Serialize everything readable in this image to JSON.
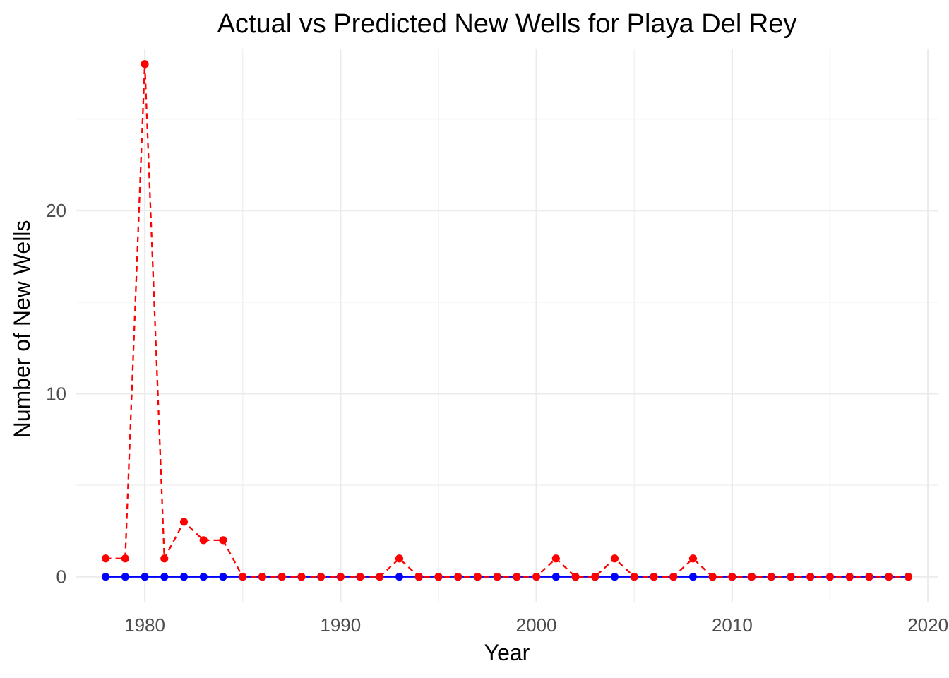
{
  "chart_data": {
    "type": "line",
    "title": "Actual vs Predicted New Wells for Playa Del Rey",
    "xlabel": "Year",
    "ylabel": "Number of New Wells",
    "xlim": [
      1976.5,
      2020.5
    ],
    "ylim": [
      -1.4,
      28.8
    ],
    "x_ticks": [
      1980,
      1990,
      2000,
      2010,
      2020
    ],
    "y_ticks": [
      0,
      10,
      20
    ],
    "grid": true,
    "legend": "none",
    "x": [
      1978,
      1979,
      1980,
      1981,
      1982,
      1983,
      1984,
      1985,
      1986,
      1987,
      1988,
      1989,
      1990,
      1991,
      1992,
      1993,
      1994,
      1995,
      1996,
      1997,
      1998,
      1999,
      2000,
      2001,
      2002,
      2003,
      2004,
      2005,
      2006,
      2007,
      2008,
      2009,
      2010,
      2011,
      2012,
      2013,
      2014,
      2015,
      2016,
      2017,
      2018,
      2019
    ],
    "series": [
      {
        "color": "#0000ff",
        "line_style": "solid",
        "values": [
          0,
          0,
          0,
          0,
          0,
          0,
          0,
          0,
          0,
          0,
          0,
          0,
          0,
          0,
          0,
          0,
          0,
          0,
          0,
          0,
          0,
          0,
          0,
          0,
          0,
          0,
          0,
          0,
          0,
          0,
          0,
          0,
          0,
          0,
          0,
          0,
          0,
          0,
          0,
          0,
          0,
          0
        ]
      },
      {
        "color": "#ff0000",
        "line_style": "dashed",
        "values": [
          1,
          1,
          28,
          1,
          3,
          2,
          2,
          0,
          0,
          0,
          0,
          0,
          0,
          0,
          0,
          1,
          0,
          0,
          0,
          0,
          0,
          0,
          0,
          1,
          0,
          0,
          1,
          0,
          0,
          0,
          1,
          0,
          0,
          0,
          0,
          0,
          0,
          0,
          0,
          0,
          0,
          0
        ]
      }
    ]
  }
}
